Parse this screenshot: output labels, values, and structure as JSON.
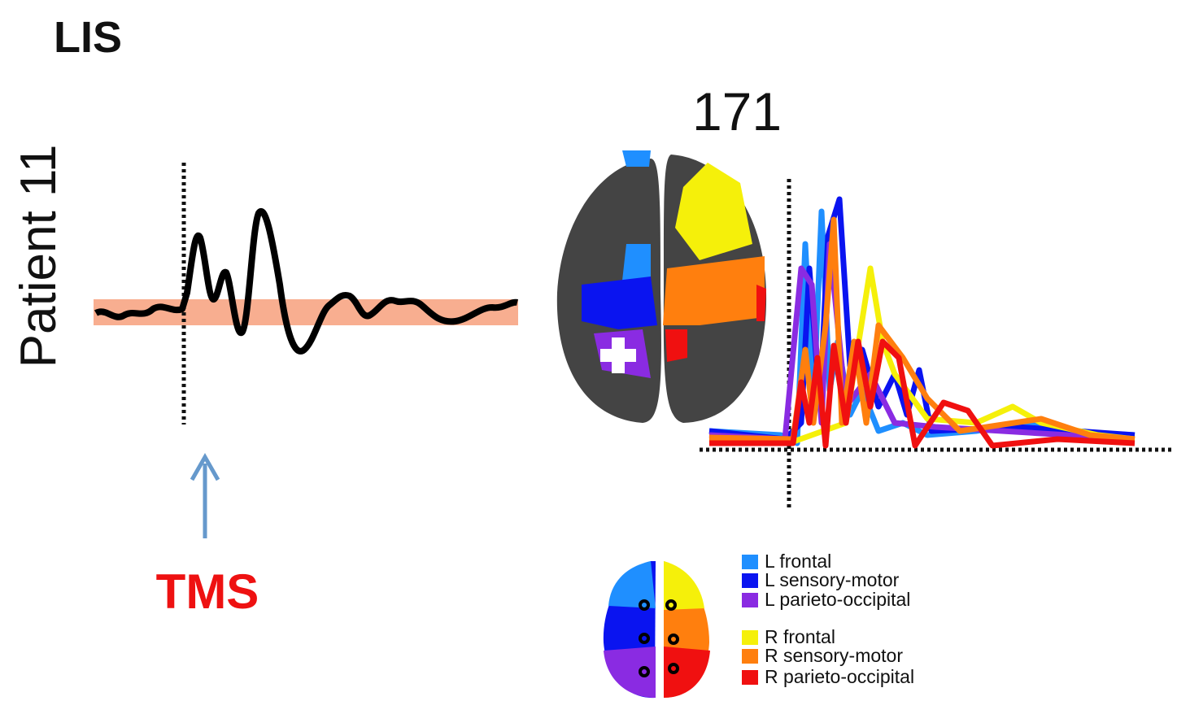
{
  "header": {
    "title": "LIS",
    "patient": "Patient 11"
  },
  "left_panel": {
    "stimulus_label": "TMS"
  },
  "right_panel": {
    "title": "171"
  },
  "legend": {
    "items": [
      {
        "label": "L frontal",
        "color": "#1f8fff"
      },
      {
        "label": "L sensory-motor",
        "color": "#0a14f0"
      },
      {
        "label": "L parieto-occipital",
        "color": "#8a2be2"
      },
      {
        "label": "R frontal",
        "color": "#f5f00a"
      },
      {
        "label": "R sensory-motor",
        "color": "#ff7f0e"
      },
      {
        "label": "R parieto-occipital",
        "color": "#f01010"
      }
    ]
  }
}
